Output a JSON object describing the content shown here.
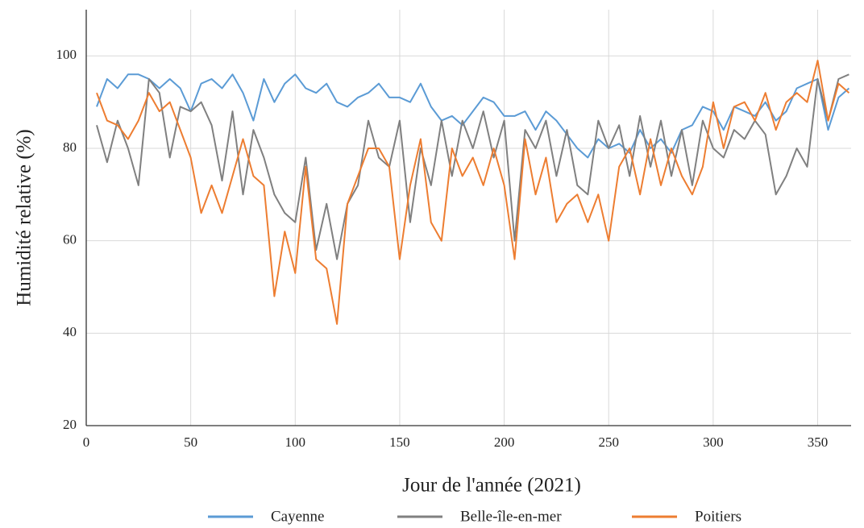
{
  "chart_data": {
    "type": "line",
    "x_label": "Jour de l'année (2021)",
    "y_label": "Humidité relative (%)",
    "x": [
      5,
      10,
      15,
      20,
      25,
      30,
      35,
      40,
      45,
      50,
      55,
      60,
      65,
      70,
      75,
      80,
      85,
      90,
      95,
      100,
      105,
      110,
      115,
      120,
      125,
      130,
      135,
      140,
      145,
      150,
      155,
      160,
      165,
      170,
      175,
      180,
      185,
      190,
      195,
      200,
      205,
      210,
      215,
      220,
      225,
      230,
      235,
      240,
      245,
      250,
      255,
      260,
      265,
      270,
      275,
      280,
      285,
      290,
      295,
      300,
      305,
      310,
      315,
      320,
      325,
      330,
      335,
      340,
      345,
      350,
      355,
      360,
      365
    ],
    "series": [
      {
        "name": "Cayenne",
        "color": "#5b9bd5",
        "values": [
          89,
          95,
          93,
          96,
          96,
          95,
          93,
          95,
          93,
          88,
          94,
          95,
          93,
          96,
          92,
          86,
          95,
          90,
          94,
          96,
          93,
          92,
          94,
          90,
          89,
          91,
          92,
          94,
          91,
          91,
          90,
          94,
          89,
          86,
          87,
          85,
          88,
          91,
          90,
          87,
          87,
          88,
          84,
          88,
          86,
          83,
          80,
          78,
          82,
          80,
          81,
          79,
          84,
          80,
          82,
          79,
          84,
          85,
          89,
          88,
          84,
          89,
          88,
          87,
          90,
          86,
          88,
          93,
          94,
          95,
          84,
          91,
          93
        ]
      },
      {
        "name": "Belle-île-en-mer",
        "color": "#808080",
        "values": [
          85,
          77,
          86,
          80,
          72,
          95,
          92,
          78,
          89,
          88,
          90,
          85,
          73,
          88,
          70,
          84,
          78,
          70,
          66,
          64,
          78,
          58,
          68,
          56,
          68,
          72,
          86,
          78,
          76,
          86,
          64,
          80,
          72,
          86,
          74,
          86,
          80,
          88,
          78,
          86,
          60,
          84,
          80,
          86,
          74,
          84,
          72,
          70,
          86,
          80,
          85,
          74,
          87,
          76,
          86,
          74,
          84,
          72,
          86,
          80,
          78,
          84,
          82,
          86,
          83,
          70,
          74,
          80,
          76,
          95,
          86,
          95,
          96
        ]
      },
      {
        "name": "Poitiers",
        "color": "#ed7d31",
        "values": [
          92,
          86,
          85,
          82,
          86,
          92,
          88,
          90,
          84,
          78,
          66,
          72,
          66,
          74,
          82,
          74,
          72,
          48,
          62,
          53,
          76,
          56,
          54,
          42,
          68,
          74,
          80,
          80,
          76,
          56,
          72,
          82,
          64,
          60,
          80,
          74,
          78,
          72,
          80,
          72,
          56,
          82,
          70,
          78,
          64,
          68,
          70,
          64,
          70,
          60,
          76,
          80,
          70,
          82,
          72,
          80,
          74,
          70,
          76,
          90,
          80,
          89,
          90,
          86,
          92,
          84,
          90,
          92,
          90,
          99,
          86,
          94,
          92
        ]
      }
    ],
    "xlim": [
      0,
      366
    ],
    "ylim": [
      20,
      110
    ],
    "xticks": [
      0,
      50,
      100,
      150,
      200,
      250,
      300,
      350
    ],
    "yticks": [
      20,
      40,
      60,
      80,
      100
    ],
    "grid": true,
    "legend": "bottom"
  }
}
